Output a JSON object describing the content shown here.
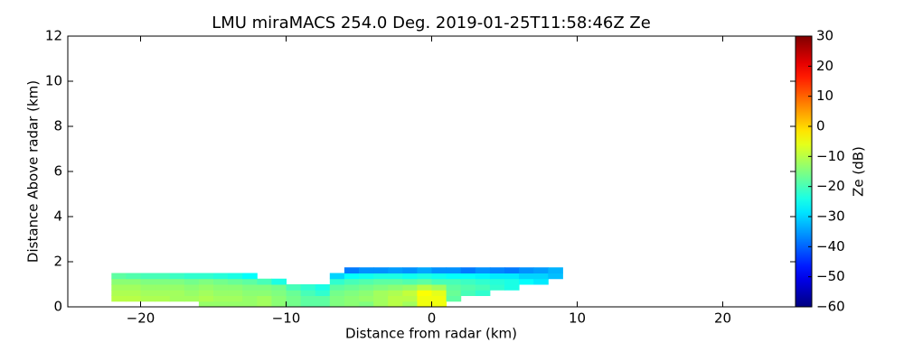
{
  "chart_data": {
    "type": "heatmap",
    "title": "LMU miraMACS 254.0 Deg. 2019-01-25T11:58:46Z  Ze",
    "xlabel": "Distance from radar (km)",
    "ylabel": "Distance Above radar  (km)",
    "colorbar_label": "Ze (dB)",
    "colormap": "jet",
    "xlim": [
      -25,
      25
    ],
    "xticks": [
      {
        "value": -20,
        "label": "−20"
      },
      {
        "value": -10,
        "label": "−10"
      },
      0,
      10,
      20
    ],
    "ylim": [
      0,
      12
    ],
    "yticks": [
      0,
      2,
      4,
      6,
      8,
      10,
      12
    ],
    "clim": [
      -60,
      30
    ],
    "cticks": [
      {
        "value": -60,
        "label": "−60"
      },
      {
        "value": -50,
        "label": "−50"
      },
      {
        "value": -40,
        "label": "−40"
      },
      {
        "value": -30,
        "label": "−30"
      },
      {
        "value": -20,
        "label": "−20"
      },
      {
        "value": -10,
        "label": "−10"
      },
      0,
      10,
      20,
      30
    ],
    "xbins": [
      -22,
      -21,
      -20,
      -19,
      -18,
      -17,
      -16,
      -15,
      -14,
      -13,
      -12,
      -11,
      -10,
      -9,
      -8,
      -7,
      -6,
      -5,
      -4,
      -3,
      -2,
      -1,
      0,
      1,
      2,
      3,
      4,
      5,
      6,
      7,
      8,
      9
    ],
    "ybins": [
      0,
      0.25,
      0.5,
      0.75,
      1,
      1.25,
      1.5,
      1.75
    ],
    "z": [
      [
        null,
        null,
        null,
        null,
        null,
        null,
        -13,
        -13,
        -13,
        -13,
        -12,
        -14,
        -16,
        -18,
        -18,
        -15,
        -14,
        -15,
        -12,
        -10,
        -12,
        -5,
        -5,
        null,
        null,
        null,
        null,
        null,
        null,
        null,
        null
      ],
      [
        -10,
        -10,
        -11,
        -11,
        -12,
        -12,
        -11,
        -12,
        -12,
        -13,
        -12,
        -14,
        -16,
        -18,
        -18,
        -15,
        -14,
        -13,
        -12,
        -10,
        -10,
        -5,
        -5,
        -18,
        null,
        null,
        null,
        null,
        null,
        null,
        null
      ],
      [
        -11,
        -11,
        -12,
        -12,
        -12,
        -13,
        -12,
        -13,
        -13,
        -14,
        -14,
        -15,
        -17,
        -20,
        -22,
        -16,
        -15,
        -14,
        -12,
        -11,
        -9,
        -4,
        -6,
        -17,
        -20,
        -22,
        null,
        null,
        null,
        null,
        null
      ],
      [
        -12,
        -12,
        -13,
        -13,
        -13,
        -14,
        -13,
        -14,
        -14,
        -15,
        -15,
        -16,
        -20,
        -22,
        -24,
        -18,
        -17,
        -16,
        -15,
        -14,
        -13,
        -10,
        -12,
        -18,
        -19,
        -20,
        -22,
        -24,
        null,
        null,
        null
      ],
      [
        -14,
        -14,
        -15,
        -15,
        -15,
        -16,
        -15,
        -16,
        -17,
        -18,
        -20,
        -24,
        null,
        null,
        null,
        -22,
        -20,
        -19,
        -18,
        -18,
        -19,
        -18,
        -20,
        -20,
        -21,
        -22,
        -23,
        -24,
        -26,
        -28,
        null
      ],
      [
        -18,
        -19,
        -20,
        -20,
        -21,
        -22,
        -22,
        -23,
        -24,
        -26,
        null,
        null,
        null,
        null,
        null,
        -30,
        -26,
        -25,
        -24,
        -24,
        -25,
        -24,
        -25,
        -26,
        -26,
        -27,
        -28,
        -28,
        -30,
        -30,
        -32
      ],
      [
        null,
        null,
        null,
        null,
        null,
        null,
        null,
        null,
        null,
        null,
        null,
        null,
        null,
        null,
        null,
        null,
        -38,
        -36,
        -36,
        -35,
        -36,
        -34,
        -36,
        -36,
        -38,
        -36,
        -37,
        -38,
        -36,
        -35,
        -33
      ]
    ]
  }
}
